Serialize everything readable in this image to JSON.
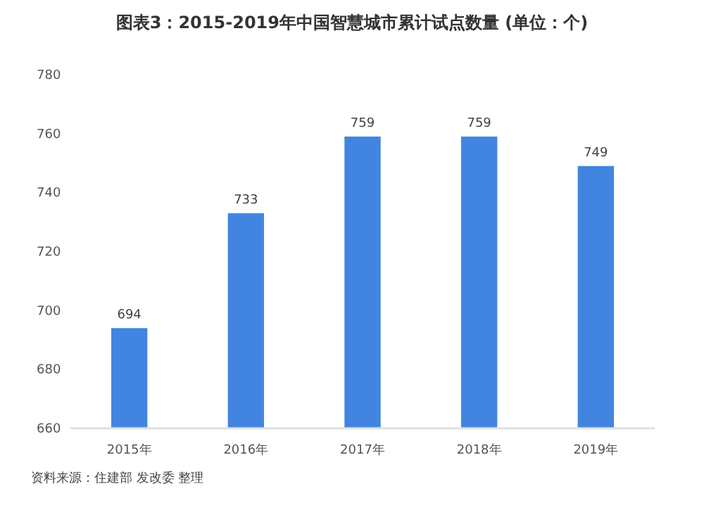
{
  "chart_data": {
    "type": "bar",
    "title": "图表3：2015-2019年中国智慧城市累计试点数量 (单位：个)",
    "categories": [
      "2015年",
      "2016年",
      "2017年",
      "2018年",
      "2019年"
    ],
    "values": [
      694,
      733,
      759,
      759,
      749
    ],
    "color": "#4185e0",
    "ylim": [
      660,
      780
    ],
    "yticks": [
      660,
      680,
      700,
      720,
      740,
      760,
      780
    ],
    "grid": false,
    "data_labels": true,
    "annotations": [
      "资料来源：住建部 发改委 整理"
    ]
  }
}
